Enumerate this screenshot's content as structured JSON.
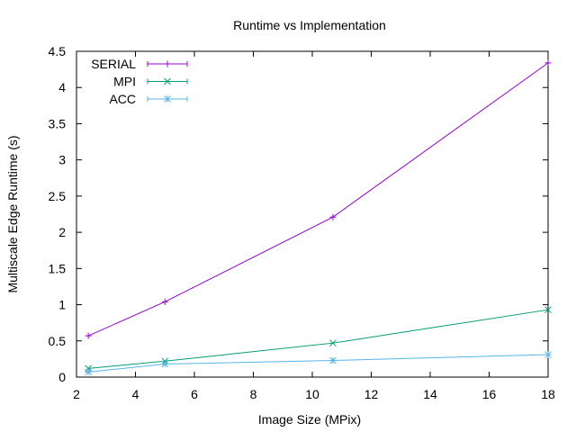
{
  "chart_data": {
    "type": "line",
    "title": "Runtime vs Implementation",
    "xlabel": "Image Size (MPix)",
    "ylabel": "Multiscale Edge Runtime (s)",
    "xlim": [
      2,
      18
    ],
    "ylim": [
      0,
      4.5
    ],
    "xticks": [
      2,
      4,
      6,
      8,
      10,
      12,
      14,
      16,
      18
    ],
    "yticks": [
      0,
      0.5,
      1,
      1.5,
      2,
      2.5,
      3,
      3.5,
      4,
      4.5
    ],
    "grid": false,
    "legend_position": "top-left",
    "x": [
      2.4,
      5.0,
      10.7,
      18.0
    ],
    "series": [
      {
        "name": "SERIAL",
        "color": "#9400d3",
        "marker": "plus",
        "values": [
          0.57,
          1.04,
          2.21,
          4.34
        ]
      },
      {
        "name": "MPI",
        "color": "#009e73",
        "marker": "cross",
        "values": [
          0.12,
          0.22,
          0.47,
          0.93
        ]
      },
      {
        "name": "ACC",
        "color": "#56b4e9",
        "marker": "asterisk",
        "values": [
          0.07,
          0.18,
          0.23,
          0.31
        ]
      }
    ]
  }
}
